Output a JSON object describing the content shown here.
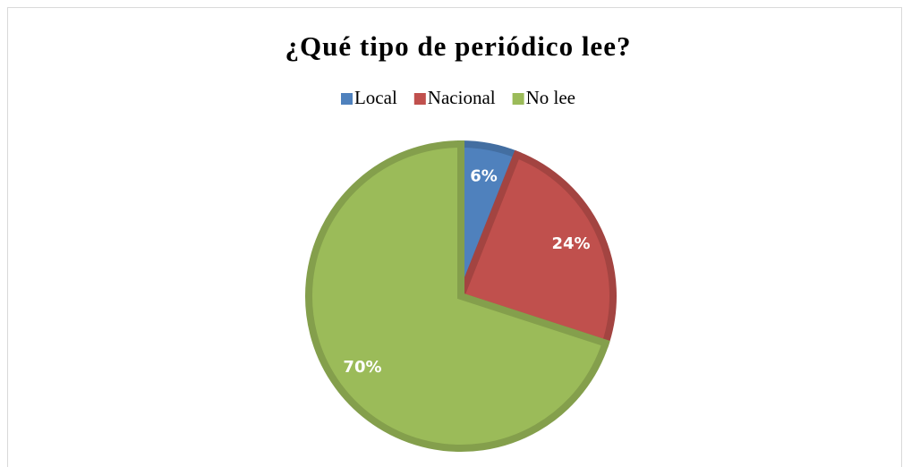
{
  "chart_data": {
    "type": "pie",
    "title": "¿Qué tipo de periódico lee?",
    "categories": [
      "Local",
      "Nacional",
      "No lee"
    ],
    "values": [
      6,
      24,
      70
    ],
    "value_labels": [
      "6%",
      "24%",
      "70%"
    ],
    "colors": [
      "#4f81bd",
      "#c0504d",
      "#9bbb59"
    ],
    "legend": "top"
  }
}
